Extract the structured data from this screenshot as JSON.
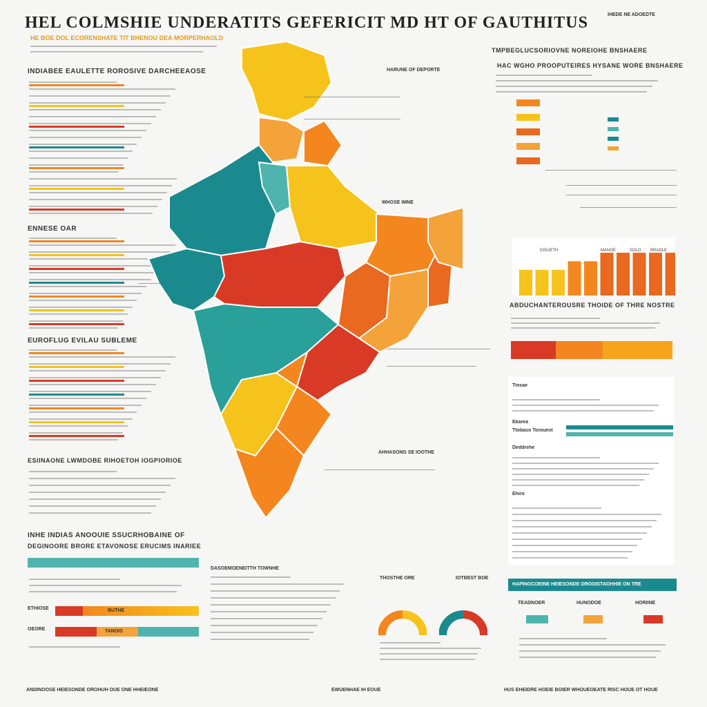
{
  "header": {
    "title": "HEL COLMSHIE UNDERATITS GEFERICIT MD HT OF GAUTHITUS",
    "subtitle": "HE BOE DOL ECORENSHATE TIT BHENOU DEA MORPERHAOLD"
  },
  "colors": {
    "teal": "#1b8a8f",
    "yellow": "#f6c31c",
    "orange": "#f4861f",
    "dark_orange": "#e8691f",
    "red": "#d83a26",
    "light_teal": "#4fb4ae",
    "map_stroke": "#ffffff"
  },
  "left_sections": [
    {
      "heading": "INDIABEE EAULETTE ROROSIVE DARCHEEAOSE"
    },
    {
      "heading": "ENNESE OAR"
    },
    {
      "heading": "EUROFLUG EVILAU SUBLEME"
    },
    {
      "heading": "ESIINAONE LWMDOBE RIHOETOH IOGPIORIOE"
    }
  ],
  "map_labels": {
    "north_callout": "HARUNE OF DEPORTE",
    "east_callout": "WHOSE IMNE",
    "south_callout": "AHHASONG SE IOOTHE"
  },
  "right_top": {
    "corner": "IHEDE NE ADOEDTE",
    "heading": "TMPBEGLUCSORIOVNE NOREIOHE BNSHAERE",
    "subheading": "HAC WGHO PROOPUTEIRES HYSANE WORE BNSHAERE"
  },
  "right_panel": {
    "heading": "ABDUCHANTEROUSRE THOIDE OF THRE NOSTRE",
    "label_a": "Tinsae",
    "label_b": "Ekarea",
    "label_c": "Deddrehe",
    "label_d": "Ehiro",
    "label_e": "Ttobaso Torouest"
  },
  "bottom_left": {
    "heading1": "INHE INDIAS ANOOUIE SSUCRHOBAINE OF",
    "heading2": "DEGINOORE BRORE ETAVONOSE ERUCIMS INARIEE",
    "bar_label_1": "BUTHE",
    "bar_label_2": "TANOIS",
    "row_label_1": "ETHIOSE",
    "row_label_2": "OEORE",
    "middle_heading": "DASOEMOENEITTH TOWNHE"
  },
  "donuts": {
    "left_label": "THOSTHE ORE",
    "right_label": "IOTBEST BOE",
    "left_pct": 50,
    "right_pct": 50
  },
  "bottom_right": {
    "banner": "HAPINOCOEINE HEIESONDE OROOISTAOHHIE ON TRE",
    "legend": [
      {
        "label": "TEADNOER",
        "color": "#4fb4ae"
      },
      {
        "label": "HUNODOE",
        "color": "#f4a23a"
      },
      {
        "label": "HORIINE",
        "color": "#d83a26"
      }
    ]
  },
  "right_bars": {
    "values": [
      3,
      3,
      3,
      4,
      4,
      5,
      5,
      5,
      5,
      5
    ],
    "labels": [
      "DISUETH",
      "MANOE",
      "SOLO",
      "BRADLE"
    ]
  },
  "footer": {
    "left": "ANDINOOSE HEIESONDE OROHUH OUE ONE HHEIEONE",
    "center": "EWUENHAE IH EOUE",
    "right": "HUS EHEIDRE HOEIE BOIER WHOUEOEATE RISC HOUE OT HOUE"
  }
}
